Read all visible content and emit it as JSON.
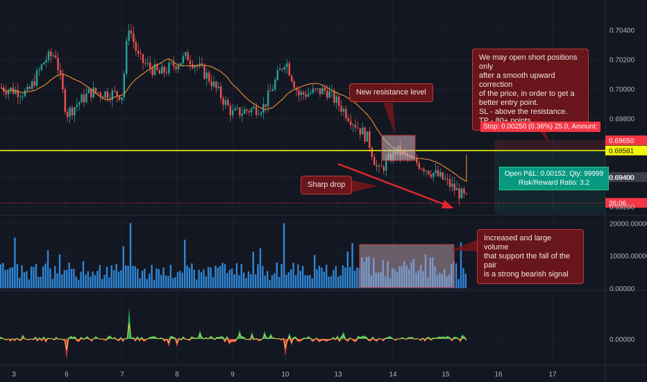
{
  "chart_data": [
    {
      "type": "candlestick",
      "panel": "price",
      "y_ticks": [
        "0.70400",
        "0.70200",
        "0.70000",
        "0.69800",
        "0.69400",
        "0.69200"
      ],
      "ylim": [
        0.6915,
        0.7058
      ],
      "x_ticks": [
        "3",
        "6",
        "7",
        "8",
        "9",
        "10",
        "13",
        "14",
        "15",
        "16",
        "17"
      ],
      "moving_average_color": "#e08a2f",
      "resistance_level": 0.69581,
      "stop_level": 0.6965,
      "current_price_label": "26:06",
      "price_labels": [
        {
          "text": "0.69650",
          "bg": "#f23645",
          "fg": "#ffffff"
        },
        {
          "text": "0.69581",
          "bg": "#f5f50a",
          "fg": "#131722"
        },
        {
          "text": "0.69400",
          "bg": "#3a3e4a",
          "fg": "#ffffff"
        },
        {
          "text": "26:06",
          "bg": "#f23645",
          "fg": "#ffffff"
        }
      ],
      "stop_badge": "Stop: 0.00250 (0.36%) 25.0, Amount:",
      "pl_badge": "Open P&L: 0.00152, Qty: 99999\nRisk/Reward Ratio: 3.2",
      "annotations": {
        "strategy": "We may open short positions only\nafter a smooth upward correction\nof the price, in order to get a\nbetter entry point.\nSL - above the resistance.\nTP - 80+ points.",
        "resistance": "New resistance level",
        "drop": "Sharp drop"
      }
    },
    {
      "type": "bar",
      "panel": "volume",
      "y_ticks": [
        "20000.00000",
        "10000.00000",
        "0.00000"
      ],
      "ylim": [
        0,
        22000
      ],
      "annotation": "Increased and large volume\nthat support the fall of the pair\nis a strong bearish signal"
    },
    {
      "type": "area",
      "panel": "oscillator",
      "y_ticks": [
        "0.00000"
      ]
    }
  ]
}
